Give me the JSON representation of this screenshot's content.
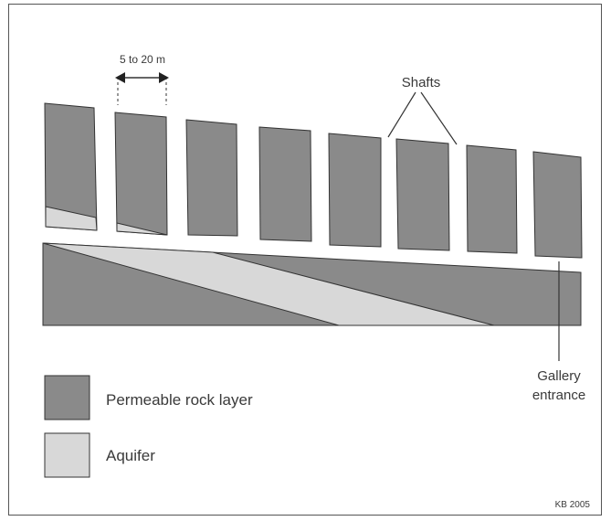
{
  "labels": {
    "spacing": "5 to 20 m",
    "shafts": "Shafts",
    "gallery_line1": "Gallery",
    "gallery_line2": "entrance",
    "credit": "KB 2005"
  },
  "legend": [
    {
      "label": "Permeable rock layer",
      "color": "#8a8a8a"
    },
    {
      "label": "Aquifer",
      "color": "#d8d8d8"
    }
  ],
  "colors": {
    "rock": "#8a8a8a",
    "aquifer": "#d8d8d8",
    "stroke": "#333333"
  }
}
